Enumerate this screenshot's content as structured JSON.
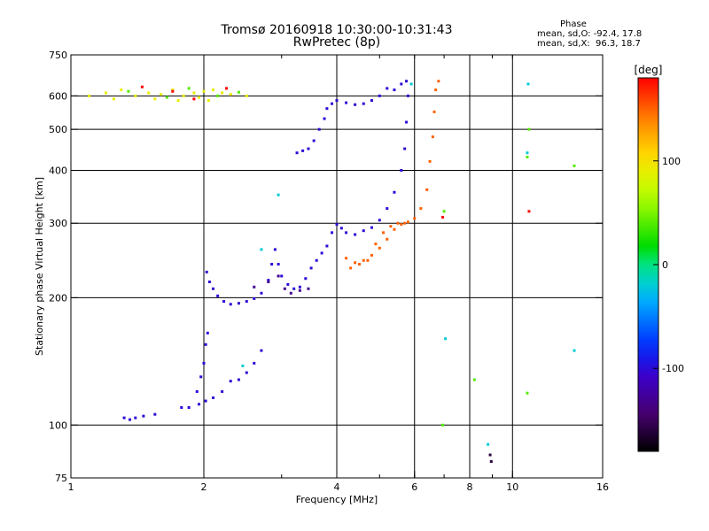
{
  "chart_data": {
    "type": "scatter",
    "title": "Tromsø 20160918 10:30:00-10:31:43",
    "subtitle": "RwPretec (8p)",
    "xlabel": "Frequency [MHz]",
    "ylabel": "Stationary phase Virtual Height [km]",
    "x_scale": "log",
    "y_scale": "log",
    "xlim": [
      1,
      16
    ],
    "ylim": [
      75,
      750
    ],
    "x_ticks": [
      1,
      2,
      4,
      6,
      8,
      10,
      16
    ],
    "y_ticks": [
      75,
      100,
      200,
      300,
      400,
      500,
      600,
      750
    ],
    "x_gridlines": [
      2,
      4,
      6,
      8,
      10
    ],
    "y_gridlines": [
      100,
      200,
      300,
      400,
      500,
      600
    ],
    "grid": true,
    "phase_info": {
      "heading": "Phase",
      "line1": "mean, sd,O: -92.4, 17.8",
      "line2": "mean, sd,X:  96.3, 18.7"
    },
    "colorbar": {
      "label": "[deg]",
      "range": [
        -180,
        180
      ],
      "ticks": [
        100,
        0,
        -100
      ]
    },
    "series": [
      {
        "phase": -100,
        "points": [
          [
            1.32,
            104
          ],
          [
            1.36,
            103
          ],
          [
            1.4,
            104
          ],
          [
            1.46,
            105
          ],
          [
            1.55,
            106
          ],
          [
            1.78,
            110
          ],
          [
            1.85,
            110
          ],
          [
            1.95,
            112
          ],
          [
            2.02,
            114
          ],
          [
            2.1,
            116
          ],
          [
            2.2,
            120
          ],
          [
            2.3,
            127
          ],
          [
            2.4,
            128
          ],
          [
            2.5,
            133
          ],
          [
            2.6,
            140
          ],
          [
            2.7,
            150
          ],
          [
            1.93,
            120
          ],
          [
            1.97,
            130
          ],
          [
            2.0,
            140
          ],
          [
            2.02,
            155
          ],
          [
            2.04,
            165
          ],
          [
            2.03,
            230
          ],
          [
            2.06,
            218
          ],
          [
            2.1,
            210
          ],
          [
            2.15,
            202
          ],
          [
            2.22,
            196
          ],
          [
            2.3,
            193
          ],
          [
            2.4,
            194
          ],
          [
            2.5,
            196
          ],
          [
            2.6,
            199
          ],
          [
            2.7,
            205
          ],
          [
            2.8,
            220
          ],
          [
            2.85,
            240
          ],
          [
            2.9,
            260
          ],
          [
            2.95,
            240
          ],
          [
            3.0,
            225
          ],
          [
            3.1,
            215
          ],
          [
            3.2,
            210
          ],
          [
            3.3,
            212
          ],
          [
            3.4,
            222
          ],
          [
            3.5,
            235
          ],
          [
            3.6,
            245
          ],
          [
            3.7,
            255
          ],
          [
            3.8,
            265
          ],
          [
            3.9,
            285
          ],
          [
            4.0,
            298
          ],
          [
            4.1,
            292
          ],
          [
            4.2,
            285
          ],
          [
            4.4,
            282
          ],
          [
            4.6,
            288
          ],
          [
            4.8,
            293
          ],
          [
            5.0,
            305
          ],
          [
            5.2,
            325
          ],
          [
            5.4,
            355
          ],
          [
            5.6,
            400
          ],
          [
            5.7,
            450
          ],
          [
            5.75,
            520
          ],
          [
            5.8,
            600
          ],
          [
            3.25,
            440
          ],
          [
            3.35,
            445
          ],
          [
            3.45,
            450
          ],
          [
            3.55,
            470
          ],
          [
            3.65,
            500
          ],
          [
            3.75,
            530
          ],
          [
            3.8,
            560
          ],
          [
            3.9,
            575
          ],
          [
            4.0,
            585
          ],
          [
            4.2,
            578
          ],
          [
            4.4,
            572
          ],
          [
            4.6,
            575
          ],
          [
            4.8,
            585
          ],
          [
            5.0,
            600
          ],
          [
            5.2,
            625
          ],
          [
            5.4,
            620
          ],
          [
            5.6,
            640
          ],
          [
            5.75,
            650
          ]
        ]
      },
      {
        "phase": -130,
        "points": [
          [
            2.6,
            212
          ],
          [
            2.8,
            218
          ],
          [
            2.95,
            225
          ],
          [
            3.05,
            210
          ],
          [
            3.15,
            205
          ],
          [
            3.3,
            208
          ],
          [
            3.45,
            210
          ]
        ]
      },
      {
        "phase": 150,
        "points": [
          [
            4.2,
            248
          ],
          [
            4.4,
            242
          ],
          [
            4.6,
            245
          ],
          [
            4.8,
            252
          ],
          [
            5.0,
            262
          ],
          [
            5.2,
            275
          ],
          [
            5.4,
            290
          ],
          [
            5.6,
            298
          ],
          [
            5.8,
            302
          ],
          [
            6.0,
            308
          ],
          [
            6.2,
            325
          ],
          [
            6.4,
            360
          ],
          [
            6.5,
            420
          ],
          [
            6.6,
            480
          ],
          [
            6.65,
            550
          ],
          [
            6.7,
            620
          ],
          [
            6.8,
            650
          ],
          [
            4.3,
            235
          ],
          [
            4.5,
            240
          ],
          [
            4.7,
            245
          ],
          [
            4.9,
            268
          ],
          [
            5.1,
            285
          ],
          [
            5.3,
            295
          ],
          [
            5.5,
            300
          ],
          [
            5.7,
            300
          ]
        ]
      },
      {
        "phase": 90,
        "points": [
          [
            1.1,
            600
          ],
          [
            1.2,
            610
          ],
          [
            1.3,
            620
          ],
          [
            1.4,
            600
          ],
          [
            1.5,
            610
          ],
          [
            1.6,
            605
          ],
          [
            1.7,
            620
          ],
          [
            1.8,
            600
          ],
          [
            1.9,
            610
          ],
          [
            2.0,
            615
          ],
          [
            2.1,
            620
          ],
          [
            2.2,
            610
          ],
          [
            2.3,
            605
          ],
          [
            2.5,
            600
          ],
          [
            1.25,
            590
          ],
          [
            1.55,
            590
          ],
          [
            1.75,
            585
          ],
          [
            1.95,
            595
          ],
          [
            2.05,
            585
          ]
        ]
      },
      {
        "phase": 40,
        "points": [
          [
            1.35,
            615
          ],
          [
            1.65,
            595
          ],
          [
            1.85,
            625
          ],
          [
            2.15,
            600
          ],
          [
            2.4,
            612
          ],
          [
            6.95,
            100
          ],
          [
            7.0,
            320
          ],
          [
            8.2,
            128
          ],
          [
            10.8,
            119
          ],
          [
            10.8,
            430
          ],
          [
            10.9,
            500
          ],
          [
            13.8,
            410
          ]
        ]
      },
      {
        "phase": 200,
        "points": [
          [
            1.45,
            630
          ],
          [
            1.7,
            615
          ],
          [
            1.9,
            590
          ],
          [
            2.25,
            625
          ],
          [
            6.95,
            310
          ],
          [
            10.9,
            320
          ]
        ]
      },
      {
        "phase": -20,
        "points": [
          [
            2.45,
            138
          ],
          [
            2.7,
            260
          ],
          [
            2.95,
            350
          ],
          [
            5.9,
            640
          ],
          [
            7.05,
            160
          ],
          [
            8.8,
            90
          ],
          [
            10.8,
            440
          ],
          [
            13.8,
            150
          ],
          [
            10.85,
            640
          ]
        ]
      },
      {
        "phase": -160,
        "points": [
          [
            8.9,
            85
          ],
          [
            8.95,
            82
          ]
        ]
      }
    ]
  }
}
